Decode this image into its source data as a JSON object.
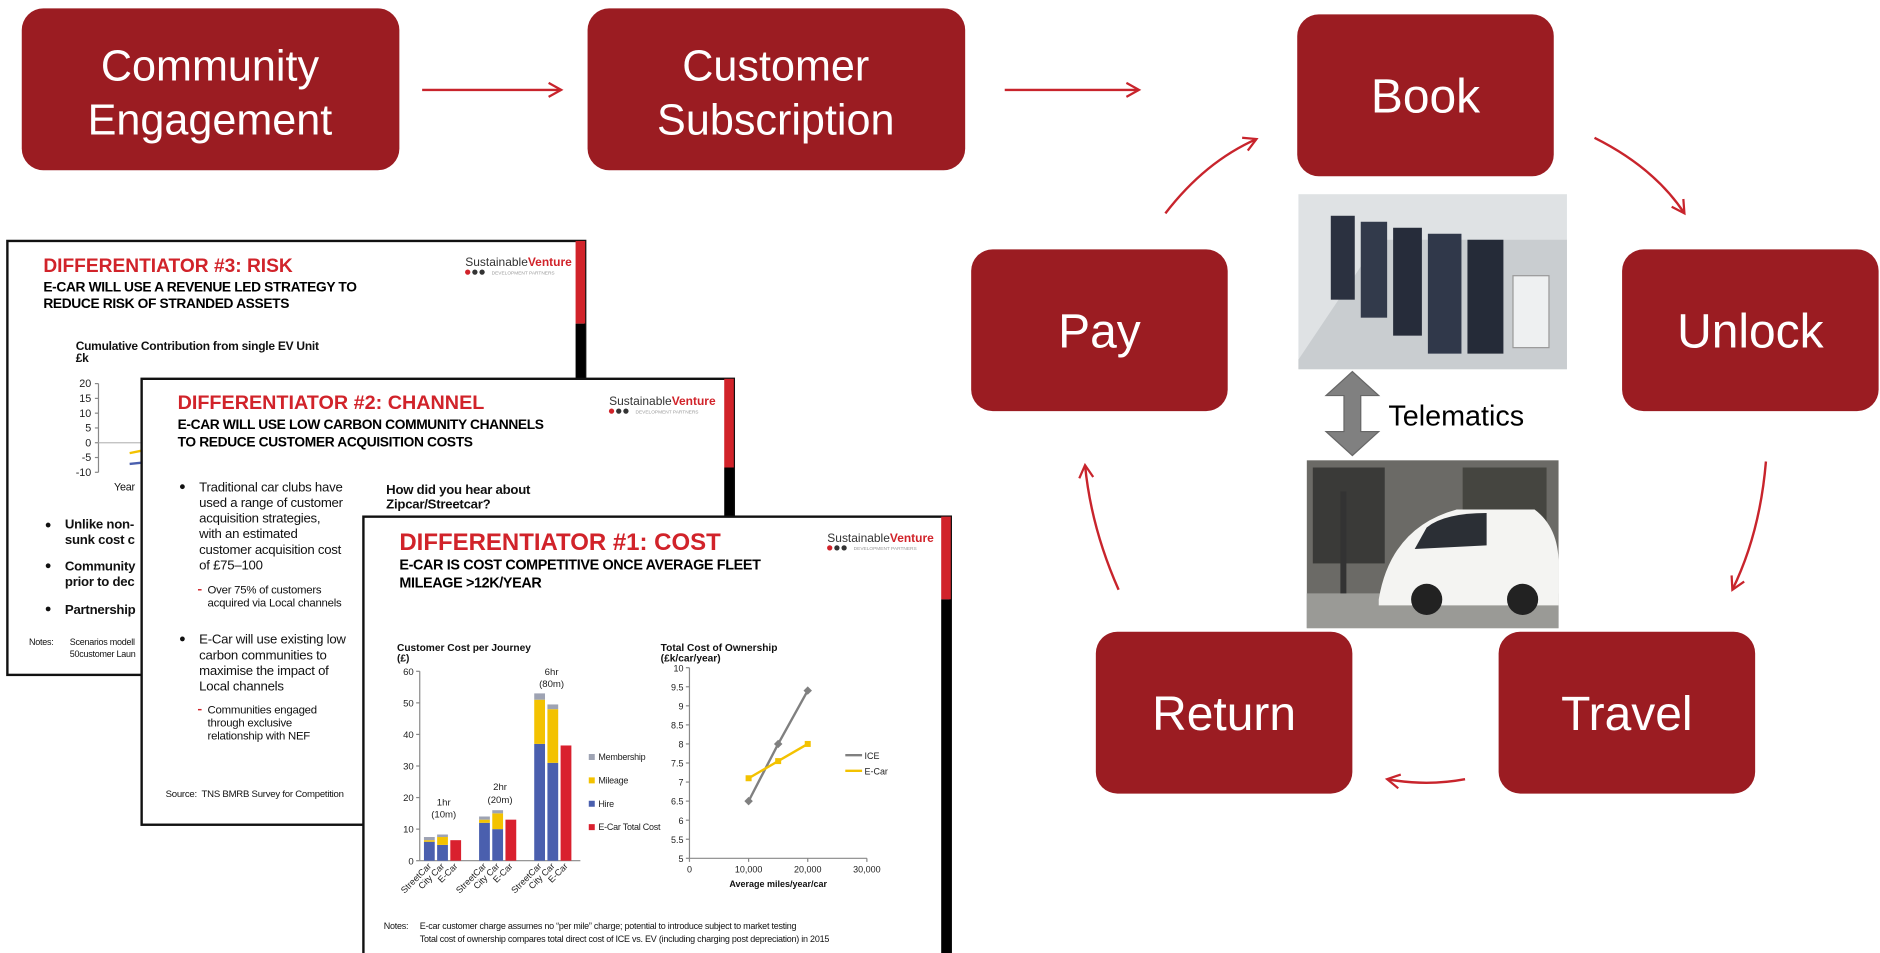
{
  "flow": [
    {
      "lines": [
        "Community",
        "Engagement"
      ]
    },
    {
      "lines": [
        "Customer",
        "Subscription"
      ]
    }
  ],
  "cycle": [
    "Book",
    "Unlock",
    "Travel",
    "Return",
    "Pay"
  ],
  "telematics": "Telematics",
  "slides": [
    {
      "title": "DIFFERENTIATOR #3: RISK",
      "subtitle": [
        "E-CAR WILL USE A REVENUE LED STRATEGY TO",
        "REDUCE RISK OF STRANDED ASSETS"
      ],
      "logo": {
        "a": "Sustainable",
        "b": "Venture",
        "tag": "DEVELOPMENT PARTNERS"
      },
      "body": [
        "Cumulative Contribution from single EV Unit",
        "£k",
        "Year",
        "Unlike non-",
        "sunk cost c",
        "Community",
        "prior to dec",
        "Partnership",
        "Notes:",
        "Scenarios modell",
        "50customer Laun"
      ],
      "chart": {
        "type": "line",
        "yticks": [
          20,
          15,
          10,
          5,
          0,
          -5,
          -10
        ],
        "ylim": [
          -10,
          20
        ]
      }
    },
    {
      "title": "DIFFERENTIATOR #2: CHANNEL",
      "subtitle": [
        "E-CAR WILL USE LOW CARBON COMMUNITY CHANNELS",
        "TO REDUCE CUSTOMER ACQUISITION COSTS"
      ],
      "logo": {
        "a": "Sustainable",
        "b": "Venture",
        "tag": "DEVELOPMENT PARTNERS"
      },
      "body": [
        "Traditional car clubs have",
        "used a range of customer",
        "acquisition strategies,",
        "with an estimated",
        "customer acquisition cost",
        "of £75–100",
        "Over 75% of customers",
        "acquired via Local channels",
        "E-Car will use existing low",
        "carbon communities to",
        "maximise the impact of",
        "Local channels",
        "Communities engaged",
        "through exclusive",
        "relationship with NEF",
        "How did you hear about",
        "Zipcar/Streetcar?",
        "Source:",
        "TNS BMRB Survey for Competition"
      ]
    },
    {
      "title": "DIFFERENTIATOR #1: COST",
      "subtitle": [
        "E-CAR IS COST COMPETITIVE ONCE AVERAGE FLEET",
        "MILEAGE >12K/YEAR"
      ],
      "logo": {
        "a": "Sustainable",
        "b": "Venture",
        "tag": "DEVELOPMENT PARTNERS"
      },
      "body": [
        "Notes:",
        "E-car customer charge assumes no “per mile” charge; potential to introduce subject to market testing",
        "Total cost of ownership compares total direct cost of ICE vs. EV (including charging post depreciation) in 2015"
      ],
      "charts": [
        {
          "type": "bar",
          "title": [
            "Customer Cost per Journey",
            "(£)"
          ],
          "categories": [
            "StreetCar",
            "City Car",
            "E-Car",
            "StreetCar",
            "City Car",
            "E-Car",
            "StreetCar",
            "City Car",
            "E-Car"
          ],
          "series": [
            {
              "name": "Membership",
              "color": "#9ea3b3",
              "values": [
                1,
                0.8,
                null,
                1,
                1,
                null,
                2,
                1.5,
                null
              ]
            },
            {
              "name": "Mileage",
              "color": "#f3c200",
              "values": [
                0.5,
                2.5,
                null,
                1,
                5,
                null,
                14,
                17,
                null
              ]
            },
            {
              "name": "Hire",
              "color": "#4a5fae",
              "values": [
                6,
                5,
                null,
                12,
                10,
                null,
                37,
                31,
                null
              ]
            },
            {
              "name": "E-Car Total Cost",
              "color": "#d9202e",
              "values": [
                null,
                null,
                6.5,
                null,
                null,
                13,
                null,
                null,
                36.5
              ]
            }
          ],
          "annotations": [
            "1hr",
            "(10m)",
            "2hr",
            "(20m)",
            "6hr",
            "(80m)"
          ],
          "ylim": [
            0,
            60
          ],
          "yticks": [
            0,
            10,
            20,
            30,
            40,
            50,
            60
          ]
        },
        {
          "type": "line",
          "title": [
            "Total Cost of Ownership",
            "(£k/car/year)"
          ],
          "x_label": "Average miles/year/car",
          "x": [
            10000,
            15000,
            20000
          ],
          "series": [
            {
              "name": "ICE",
              "color": "#808080",
              "values": [
                6.5,
                8,
                9.4
              ]
            },
            {
              "name": "E-Car",
              "color": "#f3c200",
              "values": [
                7.1,
                7.55,
                8
              ]
            }
          ],
          "xlim": [
            0,
            30000
          ],
          "xticks": [
            0,
            {
              "value": 10000,
              "label": "10,000"
            },
            {
              "value": 20000,
              "label": "20,000"
            },
            {
              "value": 30000,
              "label": "30,000"
            }
          ],
          "ylim": [
            5,
            10
          ],
          "yticks": [
            5,
            5.5,
            6,
            6.5,
            7,
            7.5,
            8,
            8.5,
            9,
            9.5,
            10
          ]
        }
      ]
    }
  ]
}
